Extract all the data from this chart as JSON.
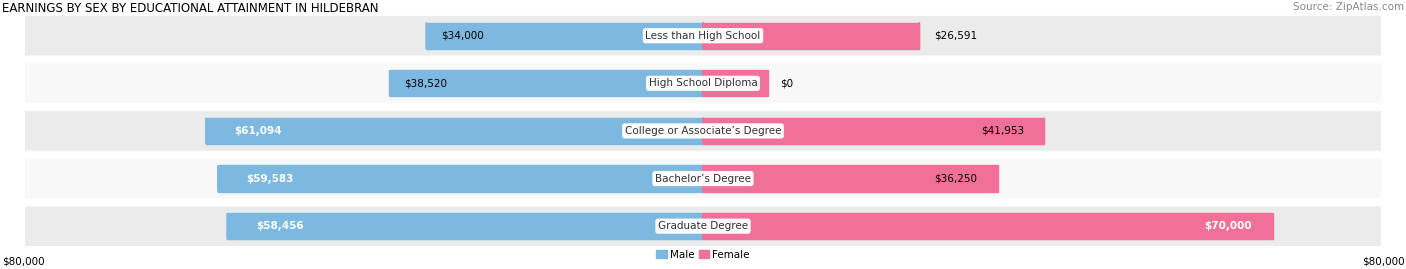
{
  "title": "EARNINGS BY SEX BY EDUCATIONAL ATTAINMENT IN HILDEBRAN",
  "source": "Source: ZipAtlas.com",
  "categories": [
    "Less than High School",
    "High School Diploma",
    "College or Associate’s Degree",
    "Bachelor’s Degree",
    "Graduate Degree"
  ],
  "male_values": [
    34000,
    38520,
    61094,
    59583,
    58456
  ],
  "female_values": [
    26591,
    0,
    41953,
    36250,
    70000
  ],
  "female_small_value": 8000,
  "male_color": "#7cb8e0",
  "female_color": "#f07098",
  "row_bg_color_odd": "#ebebeb",
  "row_bg_color_even": "#f8f8f8",
  "max_value": 80000,
  "xlabel_left": "$80,000",
  "xlabel_right": "$80,000",
  "title_fontsize": 8.5,
  "source_fontsize": 7.5,
  "label_fontsize": 7.5,
  "cat_fontsize": 7.5,
  "val_fontsize": 7.5,
  "background_color": "#ffffff"
}
